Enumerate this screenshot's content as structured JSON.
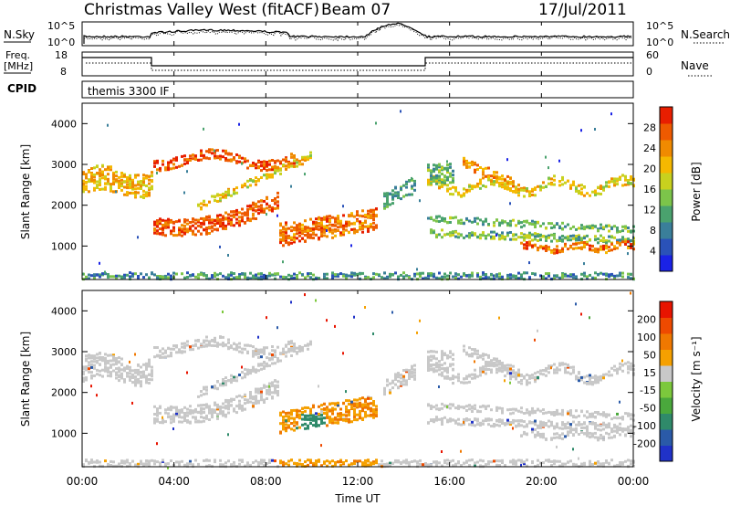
{
  "header": {
    "station": "Christmas Valley West (fitACF)",
    "beam": "Beam 07",
    "date": "17/Jul/2011"
  },
  "top_panels": {
    "nsky_label": "N.Sky",
    "nsearch_label": "N.Search",
    "noise_tick_top": "10^5",
    "noise_tick_bottom": "10^0",
    "noise_tick_top_right": "10^5",
    "noise_tick_bottom_right": "10^0",
    "freq_label": "Freq.",
    "freq_unit": "[MHz]",
    "freq_tick_top": "18",
    "freq_tick_bottom": "8",
    "nave_label": "Nave",
    "nave_tick_top": "60",
    "nave_tick_bottom": "0",
    "cpid_label": "CPID",
    "cpid_value": "themis 3300 IF"
  },
  "chart_data": [
    {
      "type": "heatmap",
      "name_field": "power",
      "ylabel": "Slant Range [km]",
      "yticks": [
        "1000",
        "2000",
        "3000",
        "4000"
      ],
      "colorbar_label": "Power [dB]",
      "colorbar_ticks": [
        "4",
        "8",
        "12",
        "16",
        "20",
        "24",
        "28"
      ],
      "colorbar_colors": [
        "#1a22e6",
        "#2a52b8",
        "#3a7f9a",
        "#4aa26e",
        "#7cc44a",
        "#c8d11e",
        "#f5b800",
        "#f08a00",
        "#ee5a00",
        "#e81e00"
      ],
      "range_km": [
        180,
        4500
      ],
      "time_range_hours": [
        0,
        24
      ]
    },
    {
      "type": "heatmap",
      "name_field": "velocity",
      "ylabel": "Slant Range [km]",
      "yticks": [
        "1000",
        "2000",
        "3000",
        "4000"
      ],
      "colorbar_label": "Velocity [m s⁻¹]",
      "colorbar_ticks": [
        "200",
        "100",
        "50",
        "15",
        "-15",
        "-50",
        "-100",
        "-200"
      ],
      "colorbar_colors": [
        "#2032c8",
        "#2a5aa8",
        "#2f8a6a",
        "#4aa83c",
        "#7cc83c",
        "#c8c8c8",
        "#f5a000",
        "#f07800",
        "#ee4a00",
        "#e81400"
      ],
      "range_km": [
        180,
        4500
      ],
      "time_range_hours": [
        0,
        24
      ]
    }
  ],
  "x_axis": {
    "ticks": [
      "00:00",
      "04:00",
      "08:00",
      "12:00",
      "16:00",
      "20:00",
      "00:00"
    ],
    "label": "Time UT"
  }
}
